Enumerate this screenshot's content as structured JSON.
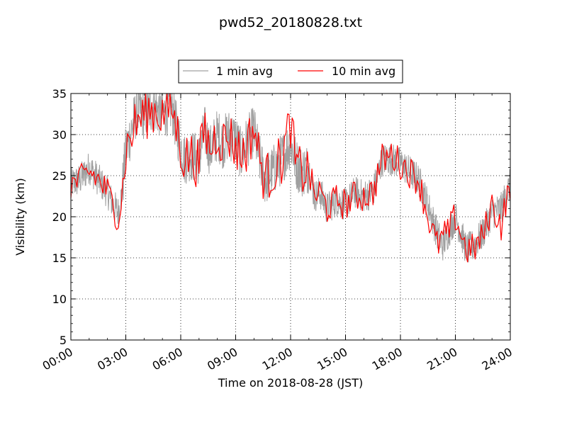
{
  "chart_data": {
    "type": "line",
    "title": "pwd52_20180828.txt",
    "xlabel": "Time on 2018-08-28 (JST)",
    "ylabel": "Visibility (km)",
    "xlim": [
      "00:00",
      "24:00"
    ],
    "ylim": [
      5,
      35
    ],
    "x_ticks": [
      "00:00",
      "03:00",
      "06:00",
      "09:00",
      "12:00",
      "15:00",
      "18:00",
      "21:00",
      "24:00"
    ],
    "y_ticks": [
      "5",
      "10",
      "15",
      "20",
      "25",
      "30",
      "35"
    ],
    "grid": true,
    "legend_position": "top-center",
    "series": [
      {
        "name": "1 min avg",
        "color": "#a0a0a0",
        "x_hours": [
          0,
          0.5,
          1,
          1.5,
          2,
          2.3,
          2.6,
          2.8,
          3,
          3.3,
          3.6,
          4,
          4.5,
          5,
          5.5,
          6,
          6.2,
          6.5,
          7,
          7.3,
          7.6,
          8,
          8.3,
          8.6,
          9,
          9.3,
          9.6,
          10,
          10.3,
          10.6,
          11,
          11.5,
          12,
          12.3,
          12.6,
          13,
          13.3,
          13.6,
          14,
          14.5,
          15,
          15.5,
          16,
          16.5,
          17,
          17.5,
          18,
          18.5,
          19,
          19.5,
          20,
          20.3,
          20.6,
          21,
          21.3,
          21.6,
          22,
          22.5,
          23,
          23.5,
          24
        ],
        "values": [
          24,
          24.5,
          26,
          24.5,
          23,
          21.5,
          20.5,
          23,
          28,
          30.5,
          33,
          32.5,
          33.5,
          32.5,
          33.5,
          28.5,
          27,
          27.5,
          27,
          30.5,
          28,
          30,
          29,
          30,
          29.5,
          27.5,
          29,
          30.5,
          27,
          24.5,
          25.5,
          27,
          29,
          26.5,
          25.5,
          26,
          22.5,
          23,
          21,
          22,
          21.5,
          23,
          22.5,
          23,
          27,
          27,
          26.5,
          25.5,
          24.5,
          21.5,
          18,
          16.5,
          18,
          20,
          18,
          16,
          16.5,
          18,
          20.5,
          21,
          24
        ]
      },
      {
        "name": "10 min avg",
        "color": "#ff0000",
        "x_hours": [
          0,
          0.5,
          1,
          1.5,
          2,
          2.3,
          2.6,
          2.8,
          3,
          3.3,
          3.6,
          4,
          4.5,
          5,
          5.5,
          6,
          6.2,
          6.5,
          7,
          7.3,
          7.6,
          8,
          8.3,
          8.6,
          9,
          9.3,
          9.6,
          10,
          10.3,
          10.6,
          11,
          11.5,
          12,
          12.3,
          12.6,
          13,
          13.3,
          13.6,
          14,
          14.5,
          15,
          15.5,
          16,
          16.5,
          17,
          17.5,
          18,
          18.5,
          19,
          19.5,
          20,
          20.3,
          20.6,
          21,
          21.3,
          21.6,
          22,
          22.5,
          23,
          23.5,
          24
        ],
        "values": [
          24,
          24.3,
          25.5,
          24.5,
          23,
          21.5,
          19.8,
          22.5,
          28,
          30,
          31.5,
          32.5,
          33,
          32.5,
          33.5,
          28.5,
          27,
          27.5,
          26.5,
          31,
          28,
          30.5,
          29,
          30,
          28.5,
          27.5,
          28.5,
          31,
          27,
          24.5,
          25.5,
          27,
          31.5,
          26,
          25.5,
          25.5,
          22.5,
          23,
          21,
          22,
          21.5,
          22.5,
          22.5,
          23,
          27,
          27.5,
          26.5,
          25.5,
          24.5,
          20,
          16.5,
          17.5,
          18,
          20,
          18,
          16,
          16,
          17.5,
          21.5,
          19,
          24
        ]
      }
    ]
  }
}
